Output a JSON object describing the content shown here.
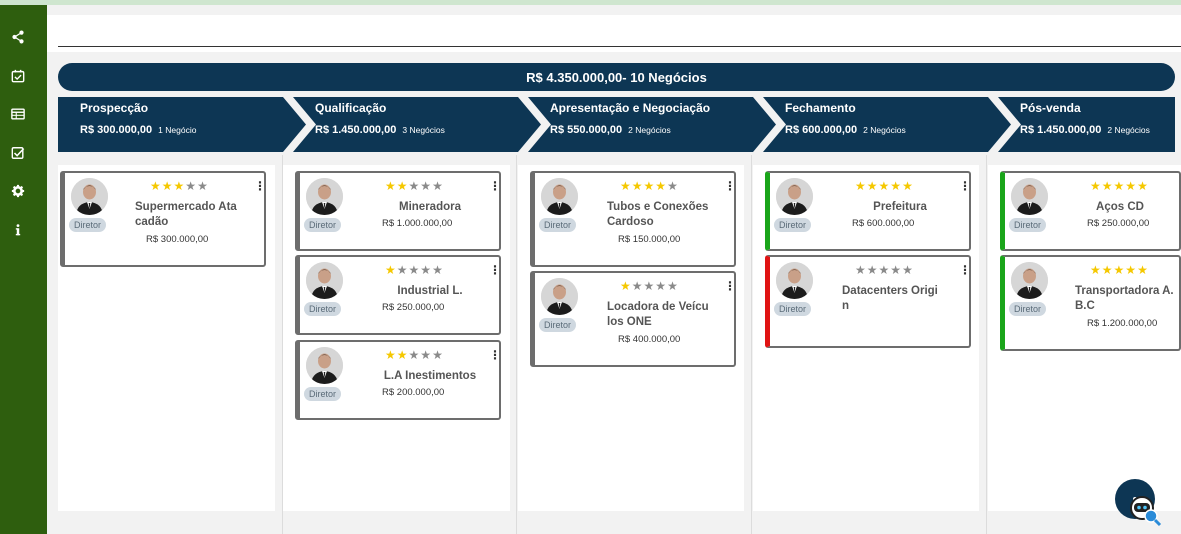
{
  "summary": {
    "total_value": "R$ 4.350.000,00",
    "total_count": "- 10 Negócios"
  },
  "stages": [
    {
      "name": "Prospecção",
      "value": "R$ 300.000,00",
      "count": "1 Negócio"
    },
    {
      "name": "Qualificação",
      "value": "R$ 1.450.000,00",
      "count": "3 Negócios"
    },
    {
      "name": "Apresentação e Negociação",
      "value": "R$ 550.000,00",
      "count": "2 Negócios"
    },
    {
      "name": "Fechamento",
      "value": "R$ 600.000,00",
      "count": "2 Negócios"
    },
    {
      "name": "Pós-venda",
      "value": "R$ 1.450.000,00",
      "count": "2 Negócios"
    }
  ],
  "deals": [
    [
      {
        "name": "Supermercado Ata cadão",
        "value": "R$ 300.000,00",
        "role": "Diretor",
        "rating": 3,
        "status": "neutral"
      }
    ],
    [
      {
        "name": "Mineradora",
        "value": "R$ 1.000.000,00",
        "role": "Diretor",
        "rating": 2,
        "status": "neutral"
      },
      {
        "name": "Industrial L.",
        "value": "R$ 250.000,00",
        "role": "Diretor",
        "rating": 1,
        "status": "neutral"
      },
      {
        "name": "L.A Inestimentos",
        "value": "R$ 200.000,00",
        "role": "Diretor",
        "rating": 2,
        "status": "neutral"
      }
    ],
    [
      {
        "name": "Tubos e Conexões Cardoso",
        "value": "R$ 150.000,00",
        "role": "Diretor",
        "rating": 4,
        "status": "neutral"
      },
      {
        "name": "Locadora de Veícu los ONE",
        "value": "R$ 400.000,00",
        "role": "Diretor",
        "rating": 1,
        "status": "neutral"
      }
    ],
    [
      {
        "name": "Prefeitura",
        "value": "R$ 600.000,00",
        "role": "Diretor",
        "rating": 5,
        "status": "won"
      },
      {
        "name": "Datacenters Origi n",
        "value": "",
        "role": "Diretor",
        "rating": 0,
        "status": "lost"
      }
    ],
    [
      {
        "name": "Aços CD",
        "value": "R$ 250.000,00",
        "role": "Diretor",
        "rating": 5,
        "status": "won"
      },
      {
        "name": "Transportadora A. B.C",
        "value": "R$ 1.200.000,00",
        "role": "Diretor",
        "rating": 5,
        "status": "won"
      }
    ]
  ],
  "sidebar": {
    "icons": [
      "share-icon",
      "calendar-check-icon",
      "table-icon",
      "checklist-icon",
      "gear-icon",
      "info-icon"
    ]
  },
  "colors": {
    "sidebar": "#2e5e0e",
    "stage_bar": "#0d3654",
    "won": "#1aa51a",
    "lost": "#e01313",
    "star": "#f5c800"
  }
}
